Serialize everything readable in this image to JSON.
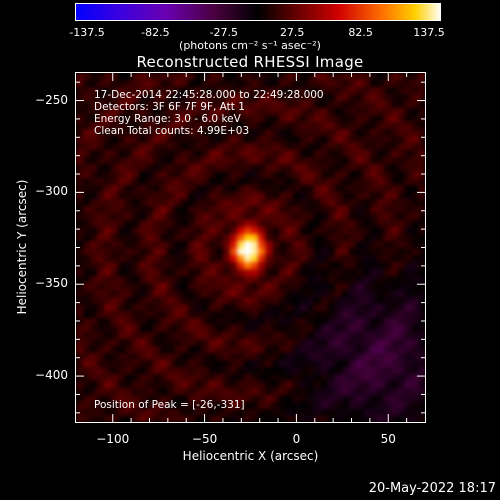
{
  "chart_data": {
    "type": "heatmap",
    "title": "Reconstructed RHESSI Image",
    "xlabel": "Heliocentric X (arcsec)",
    "ylabel": "Heliocentric Y (arcsec)",
    "xlim": [
      -120,
      70
    ],
    "ylim": [
      -425,
      -235
    ],
    "x_ticks": [
      -100,
      -50,
      0,
      50
    ],
    "y_ticks": [
      -250,
      -300,
      -350,
      -400
    ],
    "colorbar": {
      "min": -137.5,
      "max": 137.5,
      "ticks": [
        "-137.5",
        "-82.5",
        "-27.5",
        "27.5",
        "82.5",
        "137.5"
      ],
      "units": "(photons cm⁻² s⁻¹ asec⁻²)"
    },
    "annotations": [
      "17-Dec-2014 22:45:28.000 to 22:49:28.000",
      "Detectors: 3F 6F 7F 9F, Att 1",
      "Energy Range: 3.0 - 6.0 keV",
      "Clean    Total counts: 4.99E+03"
    ],
    "peak_label": "Position of Peak = [-26,-331]",
    "peak": {
      "x": -26,
      "y": -331,
      "value": 137.5
    }
  },
  "footer": {
    "timestamp": "20-May-2022 18:17"
  }
}
